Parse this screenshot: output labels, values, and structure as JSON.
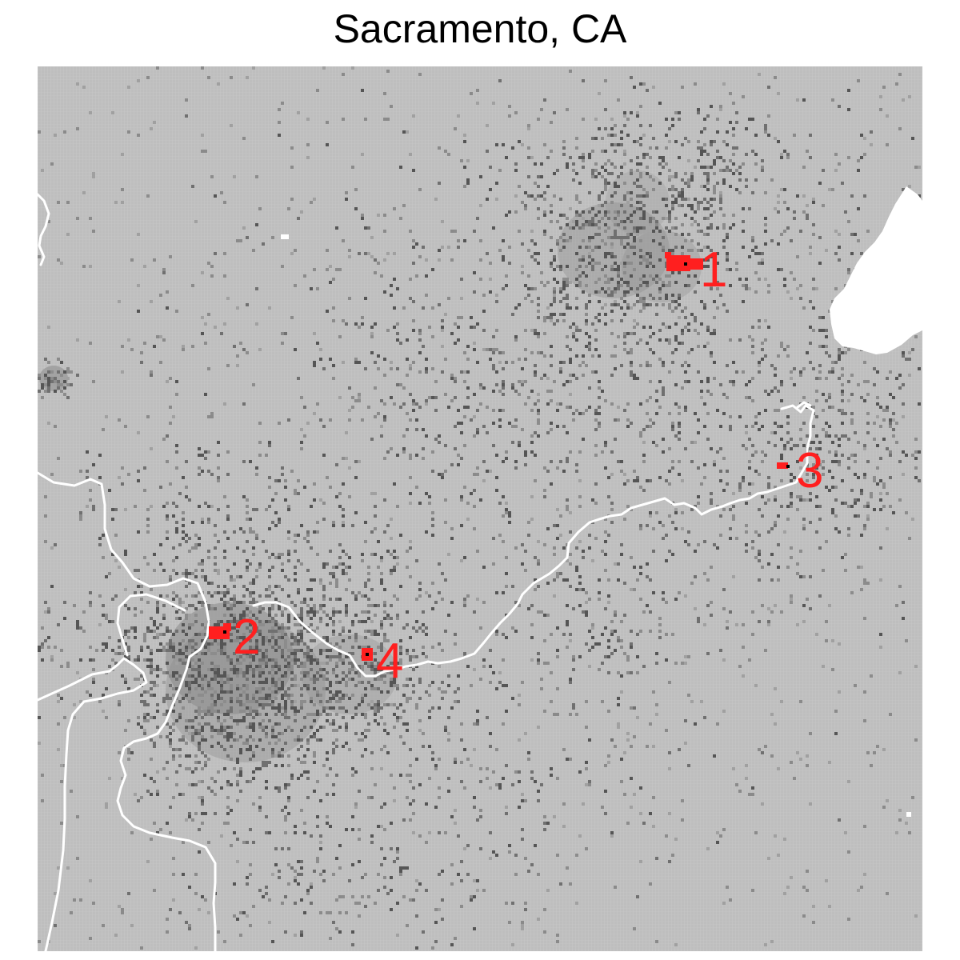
{
  "title": "Sacramento, CA",
  "colors": {
    "background": "#bfbfbf",
    "grid_line": "#c8c8c8",
    "cluster_light": "#8a8a8a",
    "cluster_dark": "#555555",
    "boundary": "#ffffff",
    "water": "#ffffff",
    "marker": "#ff1f1f",
    "marker_center": "#000000"
  },
  "markers": [
    {
      "id": "1",
      "label": "1"
    },
    {
      "id": "2",
      "label": "2"
    },
    {
      "id": "3",
      "label": "3"
    },
    {
      "id": "4",
      "label": "4"
    }
  ]
}
